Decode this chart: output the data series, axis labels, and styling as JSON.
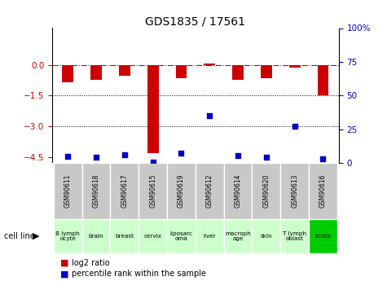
{
  "title": "GDS1835 / 17561",
  "samples": [
    "GSM90611",
    "GSM90618",
    "GSM90617",
    "GSM90615",
    "GSM90619",
    "GSM90612",
    "GSM90614",
    "GSM90620",
    "GSM90613",
    "GSM90616"
  ],
  "cell_lines": [
    "B lymph\nocyte",
    "brain",
    "breast",
    "cervix",
    "liposarc\noma",
    "liver",
    "macroph\nage",
    "skin",
    "T lymph\noblast",
    "testis"
  ],
  "cell_colors": [
    "#ccffcc",
    "#ccffcc",
    "#ccffcc",
    "#ccffcc",
    "#ccffcc",
    "#ccffcc",
    "#ccffcc",
    "#ccffcc",
    "#ccffcc",
    "#00cc00"
  ],
  "log2_ratio": [
    -0.85,
    -0.75,
    -0.55,
    -4.3,
    -0.65,
    0.08,
    -0.75,
    -0.65,
    -0.12,
    -1.5
  ],
  "percentile_rank": [
    5.0,
    4.0,
    6.0,
    0.5,
    7.5,
    35.0,
    5.5,
    4.5,
    27.0,
    3.0
  ],
  "ylim_left": [
    -4.8,
    1.8
  ],
  "ylim_right": [
    0,
    100
  ],
  "yticks_left": [
    0,
    -1.5,
    -3.0,
    -4.5
  ],
  "yticks_right": [
    0,
    25,
    50,
    75,
    100
  ],
  "bar_color": "#cc0000",
  "dot_color": "#0000cc",
  "hline_y": 0,
  "dotted_lines": [
    -1.5,
    -3.0
  ],
  "background_color": "#ffffff",
  "bar_width": 0.4,
  "gsm_row_color": "#c8c8c8"
}
